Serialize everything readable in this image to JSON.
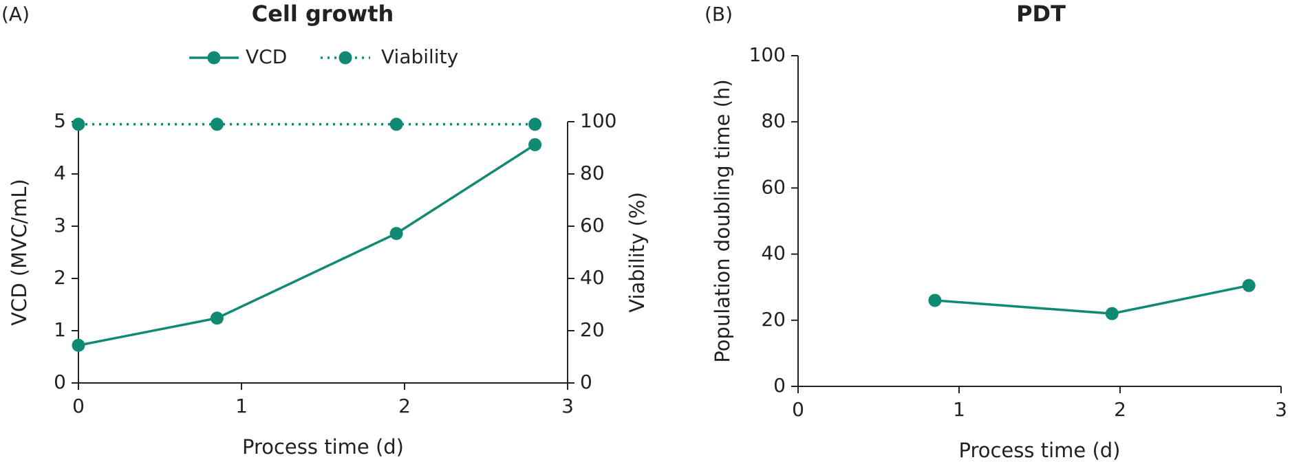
{
  "chart_data": [
    {
      "type": "line",
      "panel_label": "(A)",
      "title": "Cell growth",
      "x_label": "Process time (d)",
      "y_label": "VCD (MVC/mL)",
      "y2_label": "Viability (%)",
      "x": [
        0,
        0.85,
        1.95,
        2.8
      ],
      "series": [
        {
          "name": "VCD",
          "color": "#108a73",
          "line_style": "solid",
          "values": [
            0.72,
            1.24,
            2.86,
            4.56
          ]
        },
        {
          "name": "Viability",
          "color": "#108a73",
          "line_style": "dotted",
          "axis": "y2",
          "values": [
            99,
            99,
            99,
            99
          ]
        }
      ],
      "xlim": [
        0,
        3
      ],
      "xticks": [
        0,
        1,
        2,
        3
      ],
      "ylim": [
        0,
        5
      ],
      "yticks": [
        0,
        1,
        2,
        3,
        4,
        5
      ],
      "y2lim": [
        0,
        100
      ],
      "y2ticks": [
        0,
        20,
        40,
        60,
        80,
        100
      ]
    },
    {
      "type": "line",
      "panel_label": "(B)",
      "title": "PDT",
      "x_label": "Process time (d)",
      "y_label": "Population doubling time (h)",
      "x": [
        0.85,
        1.95,
        2.8
      ],
      "values": [
        26,
        22,
        30.5
      ],
      "color": "#108a73",
      "xlim": [
        0,
        3
      ],
      "xticks": [
        0,
        1,
        2,
        3
      ],
      "ylim": [
        0,
        100
      ],
      "yticks": [
        0,
        20,
        40,
        60,
        80,
        100
      ]
    }
  ]
}
